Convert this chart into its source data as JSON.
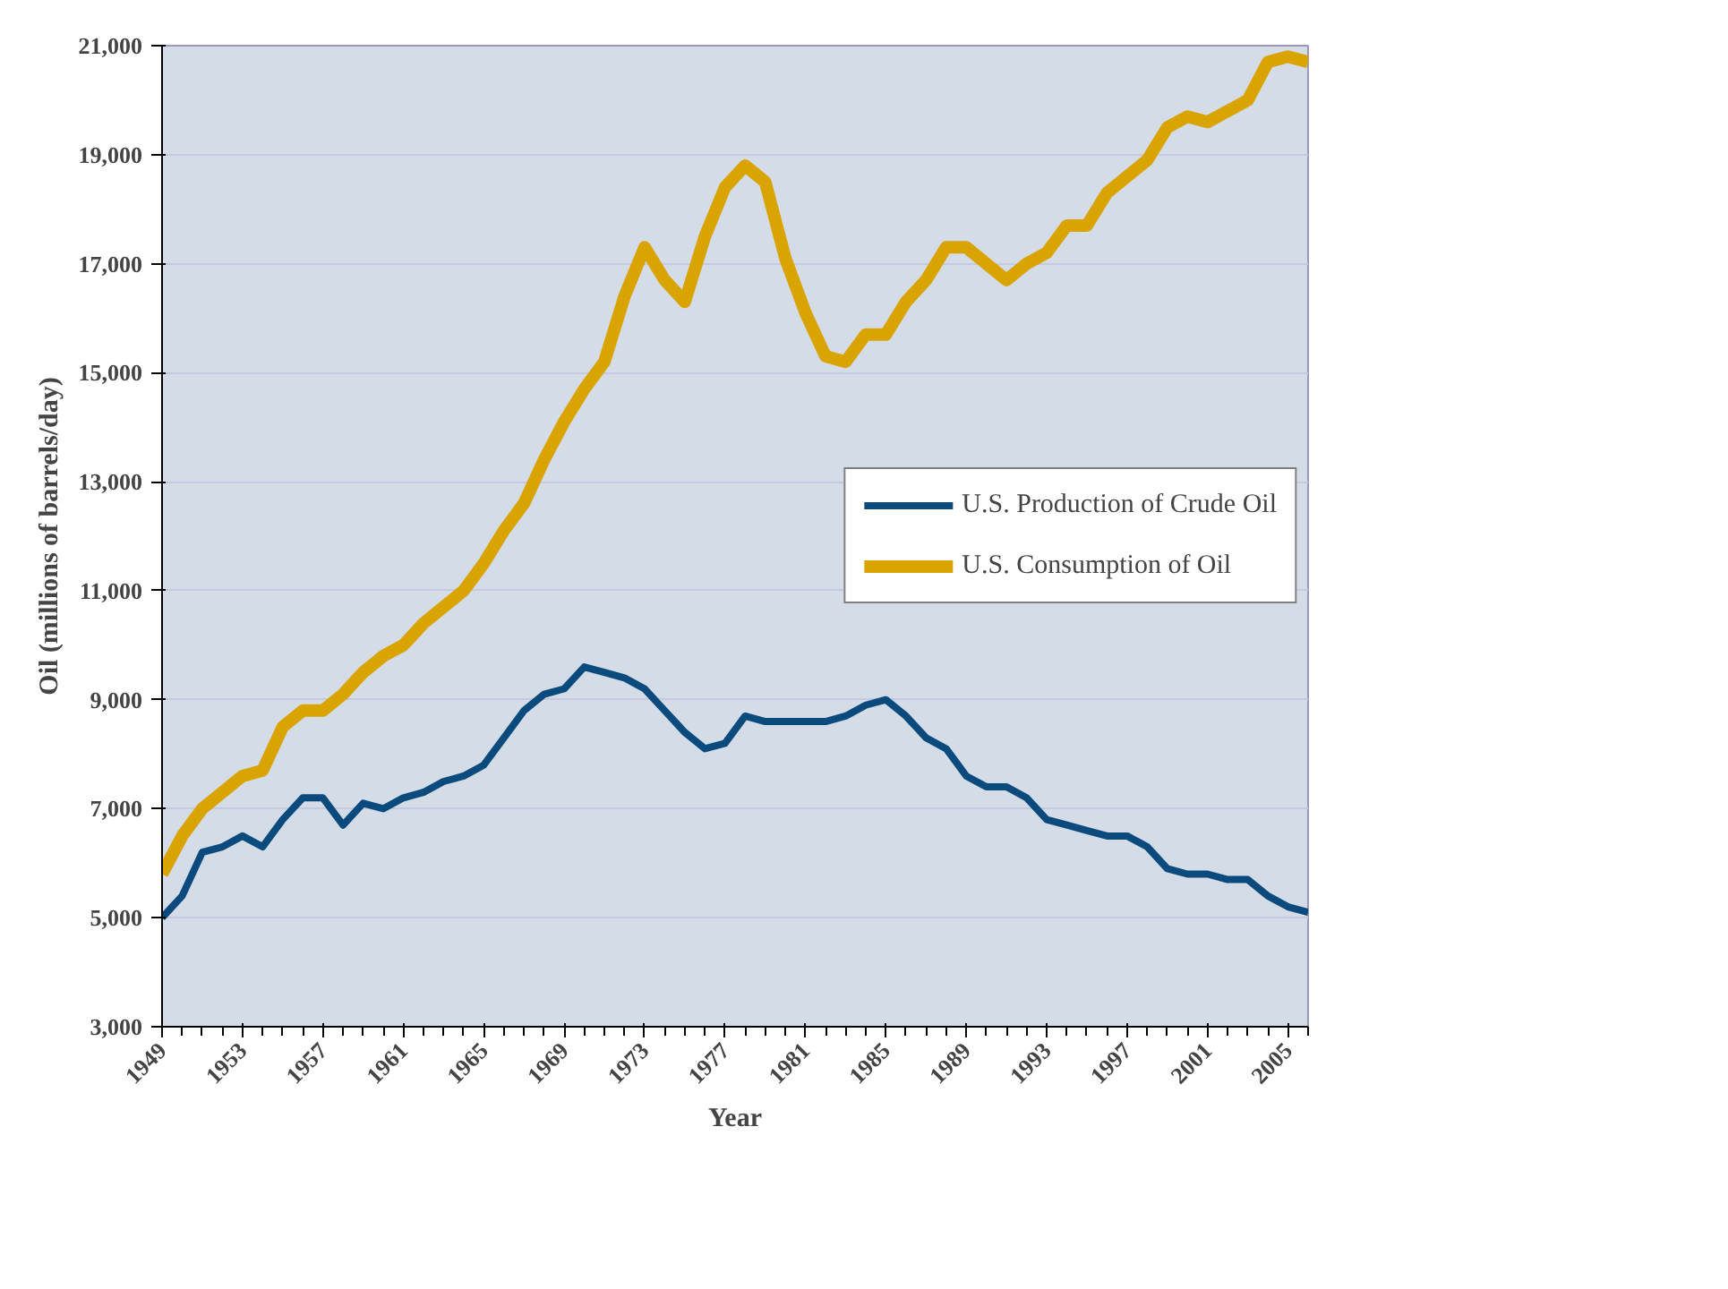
{
  "chart_data": {
    "type": "line",
    "xlabel": "Year",
    "ylabel": "Oil (millions of barrels/day)",
    "x": [
      1949,
      1950,
      1951,
      1952,
      1953,
      1954,
      1955,
      1956,
      1957,
      1958,
      1959,
      1960,
      1961,
      1962,
      1963,
      1964,
      1965,
      1966,
      1967,
      1968,
      1969,
      1970,
      1971,
      1972,
      1973,
      1974,
      1975,
      1976,
      1977,
      1978,
      1979,
      1980,
      1981,
      1982,
      1983,
      1984,
      1985,
      1986,
      1987,
      1988,
      1989,
      1990,
      1991,
      1992,
      1993,
      1994,
      1995,
      1996,
      1997,
      1998,
      1999,
      2000,
      2001,
      2002,
      2003,
      2004,
      2005,
      2006
    ],
    "series": [
      {
        "name": "U.S. Production of Crude Oil",
        "color": "#0b4a7c",
        "values": [
          5000,
          5400,
          6200,
          6300,
          6500,
          6300,
          6800,
          7200,
          7200,
          6700,
          7100,
          7000,
          7200,
          7300,
          7500,
          7600,
          7800,
          8300,
          8800,
          9100,
          9200,
          9600,
          9500,
          9400,
          9200,
          8800,
          8400,
          8100,
          8200,
          8700,
          8600,
          8600,
          8600,
          8600,
          8700,
          8900,
          9000,
          8700,
          8300,
          8100,
          7600,
          7400,
          7400,
          7200,
          6800,
          6700,
          6600,
          6500,
          6500,
          6300,
          5900,
          5800,
          5800,
          5700,
          5700,
          5400,
          5200,
          5100
        ]
      },
      {
        "name": "U.S. Consumption of Oil",
        "color": "#d9a400",
        "values": [
          5800,
          6500,
          7000,
          7300,
          7600,
          7700,
          8500,
          8800,
          8800,
          9100,
          9500,
          9800,
          10000,
          10400,
          10700,
          11000,
          11500,
          12100,
          12600,
          13400,
          14100,
          14700,
          15200,
          16400,
          17300,
          16700,
          16300,
          17500,
          18400,
          18800,
          18500,
          17100,
          16100,
          15300,
          15200,
          15700,
          15700,
          16300,
          16700,
          17300,
          17300,
          17000,
          16700,
          17000,
          17200,
          17700,
          17700,
          18300,
          18600,
          18900,
          19500,
          19700,
          19600,
          19800,
          20000,
          20700,
          20800,
          20700
        ]
      }
    ],
    "xlim": [
      1949,
      2006
    ],
    "xticks": [
      1949,
      1953,
      1957,
      1961,
      1965,
      1969,
      1973,
      1977,
      1981,
      1985,
      1989,
      1993,
      1997,
      2001,
      2005
    ],
    "ylim": [
      3000,
      21000
    ],
    "yticks": [
      {
        "value": 3000,
        "label": "3,000"
      },
      {
        "value": 5000,
        "label": "5,000"
      },
      {
        "value": 7000,
        "label": "7,000"
      },
      {
        "value": 9000,
        "label": "9,000"
      },
      {
        "value": 11000,
        "label": "11,000"
      },
      {
        "value": 13000,
        "label": "13,000"
      },
      {
        "value": 15000,
        "label": "15,000"
      },
      {
        "value": 17000,
        "label": "17,000"
      },
      {
        "value": 19000,
        "label": "19,000"
      },
      {
        "value": 21000,
        "label": "21,000"
      }
    ],
    "grid": "y",
    "legend": "right",
    "line_style": "solid"
  }
}
